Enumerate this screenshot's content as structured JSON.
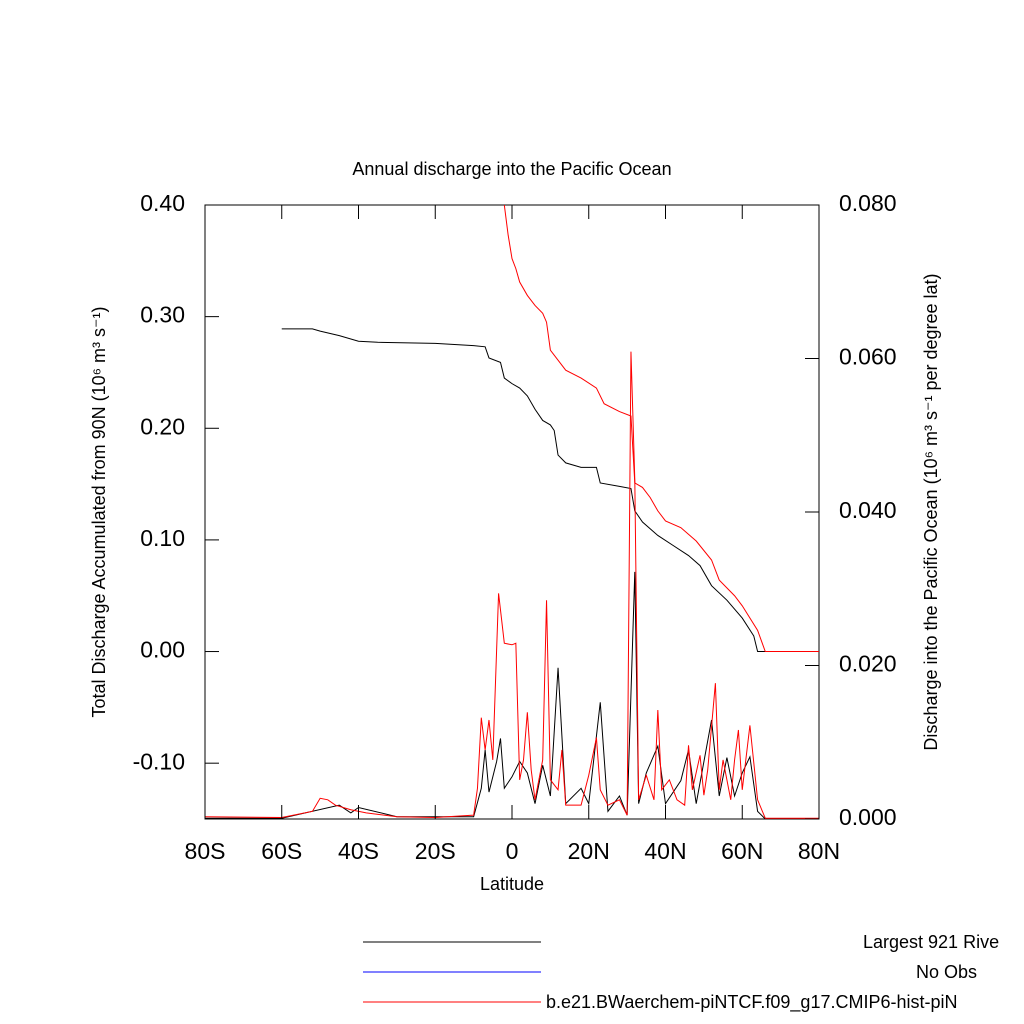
{
  "chart_data": {
    "type": "line",
    "title": "Annual discharge into the Pacific Ocean",
    "xlabel": "Latitude",
    "ylabel": "Total Discharge Accumulated from 90N (10⁶ m³ s⁻¹)",
    "y2label": "Discharge into the Pacific Ocean (10⁶ m³ s⁻¹ per degree lat)",
    "xlim": [
      -80,
      80
    ],
    "xticks": [
      {
        "value": -80,
        "label": "80S"
      },
      {
        "value": -60,
        "label": "60S"
      },
      {
        "value": -40,
        "label": "40S"
      },
      {
        "value": -20,
        "label": "20S"
      },
      0,
      {
        "value": 20,
        "label": "20N"
      },
      {
        "value": 40,
        "label": "40N"
      },
      {
        "value": 60,
        "label": "60N"
      },
      {
        "value": 80,
        "label": "80N"
      }
    ],
    "ylim": [
      -0.15,
      0.4
    ],
    "yticks": [
      {
        "value": 0.4,
        "label": "0.40"
      },
      {
        "value": 0.3,
        "label": "0.30"
      },
      {
        "value": 0.2,
        "label": "0.20"
      },
      {
        "value": 0.1,
        "label": "0.10"
      },
      {
        "value": 0.0,
        "label": "0.00"
      },
      {
        "value": -0.1,
        "label": "-0.10"
      }
    ],
    "y2lim": [
      0,
      0.08
    ],
    "y2ticks": [
      {
        "value": 0,
        "label": "0.000"
      },
      {
        "value": 0.02,
        "label": "0.020"
      },
      {
        "value": 0.04,
        "label": "0.040"
      },
      {
        "value": 0.06,
        "label": "0.060"
      },
      {
        "value": 0.08,
        "label": "0.080"
      }
    ],
    "legend": [
      {
        "name": "Largest 921 Rive",
        "color": "#000000"
      },
      {
        "name": "No Obs",
        "color": "#0000ff"
      },
      {
        "name": "b.e21.BWaerchem-piNTCF.f09_g17.CMIP6-hist-piN",
        "color": "#ff0000"
      }
    ],
    "series": [
      {
        "color": "#000000",
        "axis": "y",
        "x": [
          -60,
          -52,
          -50,
          -45,
          -40,
          -35,
          -20,
          -10,
          -7,
          -6,
          -3,
          -2,
          0,
          2,
          4,
          6,
          8,
          10,
          11,
          12,
          14,
          18,
          22,
          23,
          28,
          31,
          32,
          34,
          38,
          42,
          46,
          49,
          52,
          56,
          60,
          63,
          64,
          80
        ],
        "values": [
          0.289,
          0.289,
          0.287,
          0.283,
          0.278,
          0.277,
          0.276,
          0.274,
          0.273,
          0.263,
          0.259,
          0.245,
          0.24,
          0.236,
          0.229,
          0.217,
          0.207,
          0.203,
          0.198,
          0.176,
          0.169,
          0.165,
          0.165,
          0.151,
          0.148,
          0.146,
          0.126,
          0.116,
          0.104,
          0.095,
          0.086,
          0.077,
          0.059,
          0.046,
          0.03,
          0.014,
          0.0,
          0.0
        ]
      },
      {
        "color": "#ff0000",
        "axis": "y",
        "x": [
          -2,
          -1,
          0,
          1,
          2,
          4,
          6,
          8,
          9,
          10,
          12,
          14,
          18,
          22,
          24,
          28,
          31,
          32,
          34,
          36,
          38,
          40,
          44,
          48,
          52,
          54,
          58,
          60,
          64,
          66,
          80
        ],
        "values": [
          0.4,
          0.373,
          0.352,
          0.343,
          0.331,
          0.319,
          0.31,
          0.303,
          0.295,
          0.27,
          0.261,
          0.252,
          0.245,
          0.236,
          0.222,
          0.215,
          0.211,
          0.151,
          0.147,
          0.138,
          0.126,
          0.117,
          0.111,
          0.099,
          0.082,
          0.064,
          0.05,
          0.041,
          0.019,
          0.0,
          0.0
        ]
      },
      {
        "color": "#000000",
        "axis": "y2",
        "x": [
          -80,
          -60,
          -45,
          -42,
          -40,
          -30,
          -10,
          -8,
          -7,
          -6,
          -4,
          -3,
          -2,
          0,
          2,
          4,
          6,
          8,
          10,
          12,
          14,
          18,
          20,
          23,
          25,
          28,
          30,
          32,
          33,
          35,
          38,
          40,
          44,
          46,
          48,
          52,
          54,
          56,
          58,
          60,
          62,
          64,
          66,
          80
        ],
        "values": [
          0.0001,
          0.0001,
          0.0018,
          0.0008,
          0.0015,
          0.0003,
          0.0003,
          0.004,
          0.009,
          0.0035,
          0.0075,
          0.0105,
          0.004,
          0.0055,
          0.0075,
          0.006,
          0.002,
          0.007,
          0.003,
          0.0197,
          0.002,
          0.004,
          0.002,
          0.0152,
          0.001,
          0.003,
          0.0005,
          0.0322,
          0.002,
          0.006,
          0.0095,
          0.002,
          0.005,
          0.009,
          0.002,
          0.0129,
          0.003,
          0.008,
          0.003,
          0.006,
          0.0081,
          0.001,
          0.0,
          0.0
        ]
      },
      {
        "color": "#ff0000",
        "axis": "y2",
        "x": [
          -80,
          -60,
          -52,
          -50,
          -48,
          -46,
          -42,
          -38,
          -30,
          -20,
          -10,
          -9,
          -8,
          -7,
          -6,
          -5,
          -3.5,
          -2,
          0,
          1,
          2,
          3,
          4,
          5,
          6,
          8,
          9,
          10,
          12,
          13,
          14,
          18,
          20,
          22,
          23,
          25,
          28,
          30,
          31,
          32,
          33,
          35,
          37,
          38,
          39,
          41,
          43,
          45,
          46,
          47,
          49,
          50,
          51,
          53,
          54,
          55,
          57,
          58,
          59,
          60,
          62,
          64,
          66,
          80
        ],
        "values": [
          0.0003,
          0.0002,
          0.001,
          0.0027,
          0.0025,
          0.0018,
          0.0012,
          0.0008,
          0.0003,
          0.0002,
          0.0005,
          0.004,
          0.0132,
          0.009,
          0.0129,
          0.0077,
          0.0294,
          0.0229,
          0.0227,
          0.0229,
          0.0051,
          0.0077,
          0.0139,
          0.0064,
          0.0025,
          0.0077,
          0.0285,
          0.0051,
          0.0038,
          0.009,
          0.0018,
          0.0018,
          0.0057,
          0.0106,
          0.0038,
          0.0018,
          0.0025,
          0.0005,
          0.0609,
          0.0442,
          0.0025,
          0.0057,
          0.0025,
          0.0142,
          0.0038,
          0.0051,
          0.0025,
          0.0018,
          0.0096,
          0.0038,
          0.0083,
          0.0031,
          0.0064,
          0.0177,
          0.0038,
          0.0077,
          0.0025,
          0.0077,
          0.0116,
          0.0038,
          0.0122,
          0.0025,
          0.0001,
          0.0001
        ]
      }
    ]
  }
}
